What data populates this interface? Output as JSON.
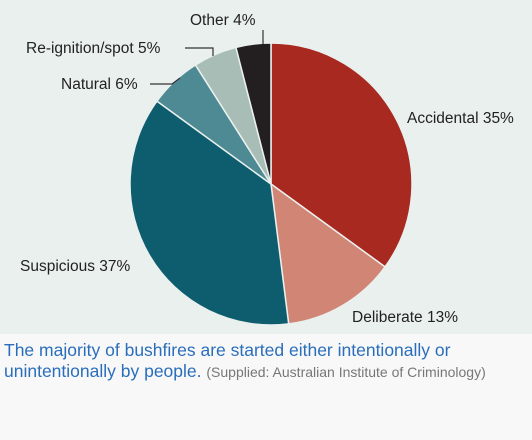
{
  "chart_data": {
    "type": "pie",
    "slices": [
      {
        "label": "Accidental 35%",
        "value": 35,
        "color": "#a8291f"
      },
      {
        "label": "Deliberate 13%",
        "value": 13,
        "color": "#d18575"
      },
      {
        "label": "Suspicious 37%",
        "value": 37,
        "color": "#0d5d6f"
      },
      {
        "label": "Natural 6%",
        "value": 6,
        "color": "#4d8a94"
      },
      {
        "label": "Re-ignition/spot 5%",
        "value": 5,
        "color": "#a9bdb7"
      },
      {
        "label": "Other 4%",
        "value": 4,
        "color": "#231f20"
      }
    ]
  },
  "caption": {
    "text": "The majority of bushfires are started either intentionally or unintentionally by people.",
    "source": "(Supplied: Australian Institute of Criminology)"
  }
}
